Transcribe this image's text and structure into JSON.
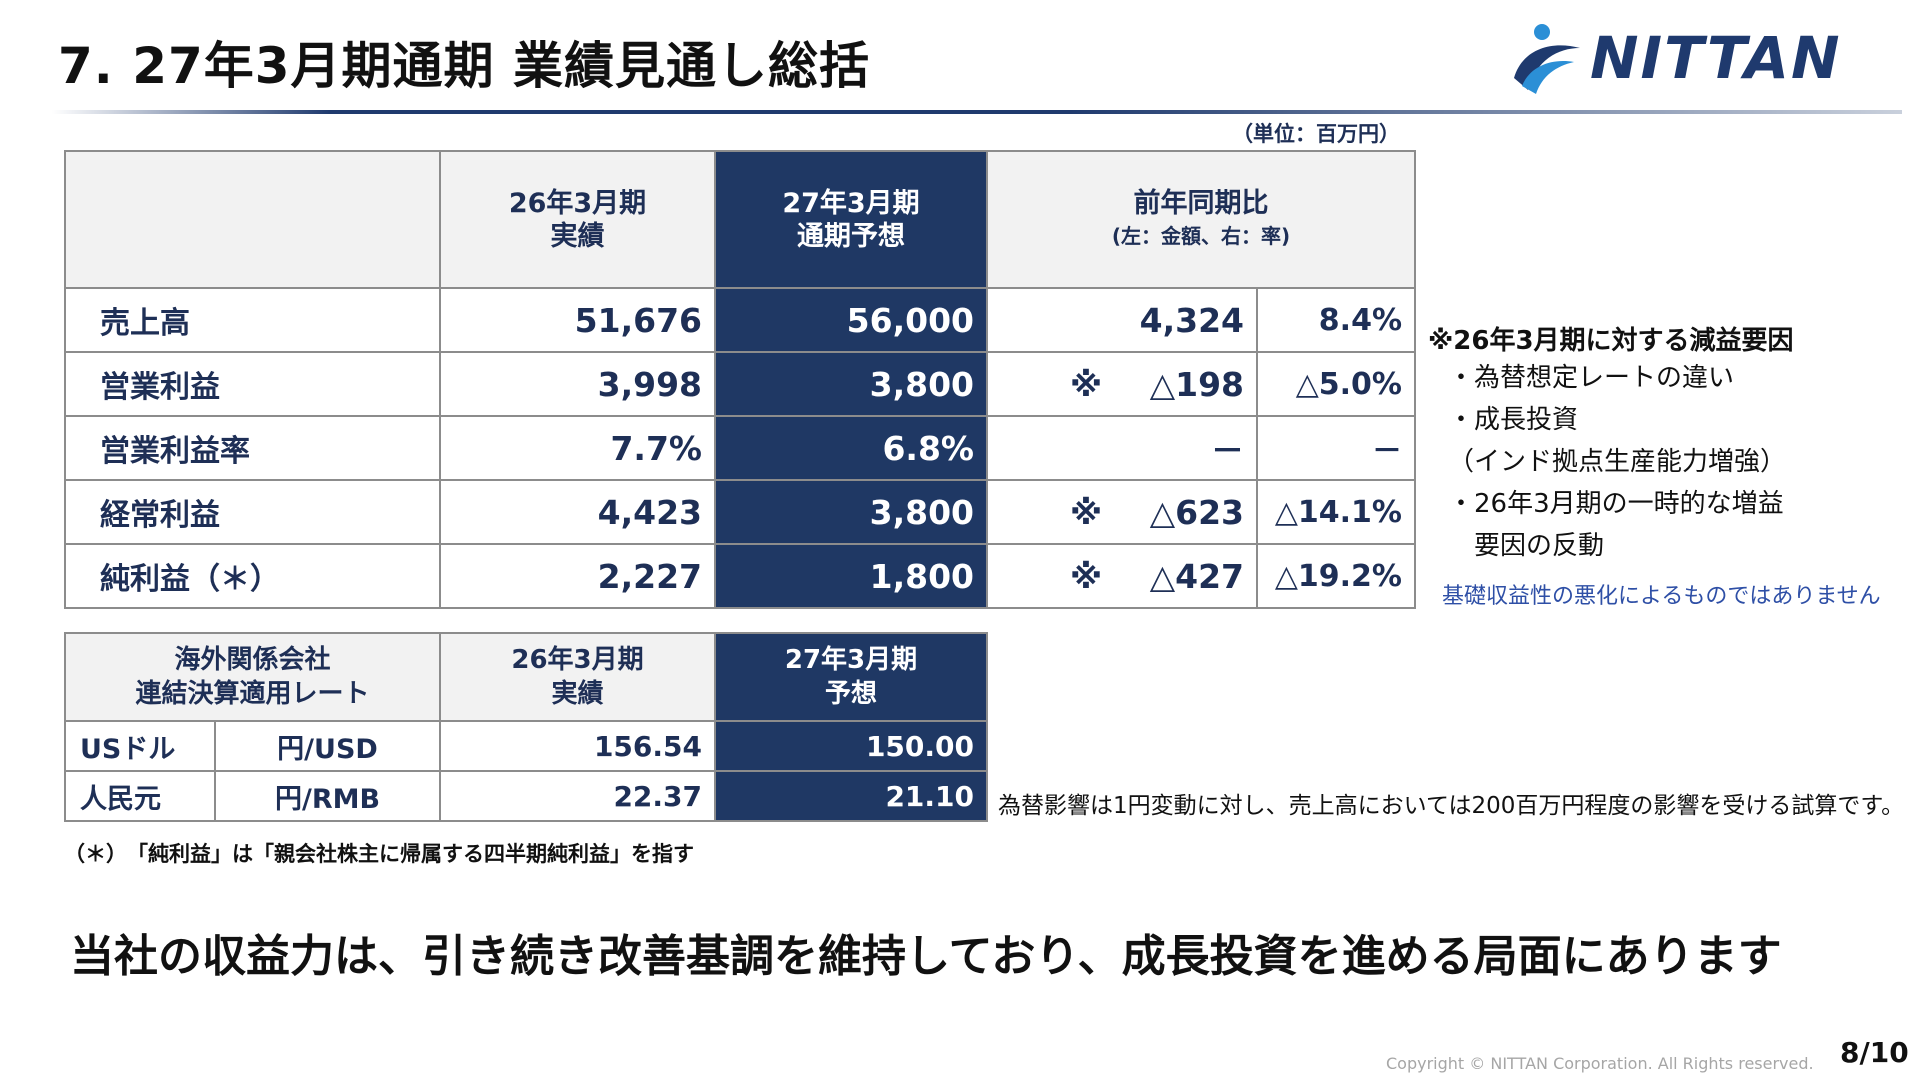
{
  "title": "7. 27年3月期通期 業績見通し総括",
  "logo": {
    "text": "NITTAN",
    "colors": {
      "navy": "#1f3a6e",
      "blue": "#2b8fd6"
    }
  },
  "unit_label": "（単位：百万円）",
  "main_table": {
    "headers": {
      "fy26_line1": "26年3月期",
      "fy26_line2": "実績",
      "fy27_line1": "27年3月期",
      "fy27_line2": "通期予想",
      "yoy_line1": "前年同期比",
      "yoy_line2": "(左：金額、右：率)"
    },
    "rows": [
      {
        "label": "売上高",
        "fy26": "51,676",
        "fy27": "56,000",
        "mark": "",
        "diff": "4,324",
        "rate": "8.4%"
      },
      {
        "label": "営業利益",
        "fy26": "3,998",
        "fy27": "3,800",
        "mark": "※",
        "diff": "△198",
        "rate": "△5.0%"
      },
      {
        "label": "営業利益率",
        "fy26": "7.7%",
        "fy27": "6.8%",
        "mark": "",
        "diff": "－",
        "rate": "－"
      },
      {
        "label": "経常利益",
        "fy26": "4,423",
        "fy27": "3,800",
        "mark": "※",
        "diff": "△623",
        "rate": "△14.1%"
      },
      {
        "label": "純利益（＊）",
        "fy26": "2,227",
        "fy27": "1,800",
        "mark": "※",
        "diff": "△427",
        "rate": "△19.2%"
      }
    ]
  },
  "fx_table": {
    "headers": {
      "label_line1": "海外関係会社",
      "label_line2": "連結決算適用レート",
      "fy26_line1": "26年3月期",
      "fy26_line2": "実績",
      "fy27_line1": "27年3月期",
      "fy27_line2": "予想"
    },
    "rows": [
      {
        "currency": "USドル",
        "unit": "円/USD",
        "fy26": "156.54",
        "fy27": "150.00"
      },
      {
        "currency": "人民元",
        "unit": "円/RMB",
        "fy26": "22.37",
        "fy27": "21.10"
      }
    ]
  },
  "notes": {
    "title": "※26年3月期に対する減益要因",
    "items": [
      "・為替想定レートの違い",
      "・成長投資",
      "（インド拠点生産能力増強）",
      "・26年3月期の一時的な増益",
      "　要因の反動"
    ],
    "blue_note": "基礎収益性の悪化によるものではありません"
  },
  "fx_note": "為替影響は1円変動に対し、売上高においては200百万円程度の影響を受ける試算です。",
  "footnote": "（＊）　「純利益」は「親会社株主に帰属する四半期純利益」を指す",
  "message": "当社の収益力は、引き続き改善基調を維持しており、成長投資を進める局面にあります",
  "copyright": "Copyright © NITTAN Corporation. All Rights reserved.",
  "page_number": "8/10"
}
